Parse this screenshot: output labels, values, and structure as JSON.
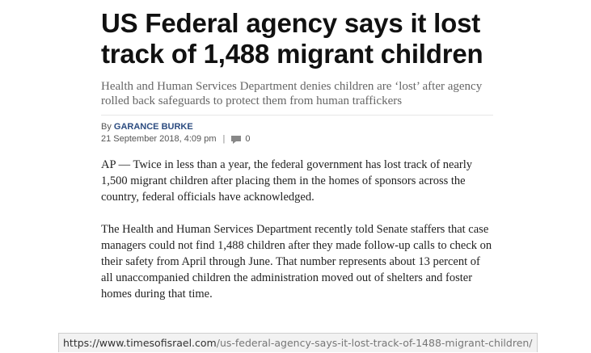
{
  "article": {
    "headline": "US Federal agency says it lost track of 1,488 migrant children",
    "subheadline": "Health and Human Services Department denies children are ‘lost’ after agency rolled back safeguards to protect them from human traffickers",
    "byline_prefix": "By",
    "author": "GARANCE BURKE",
    "timestamp": "21 September 2018, 4:09 pm",
    "separator": "|",
    "comment_count": "0",
    "paragraphs": [
      "AP — Twice in less than a year, the federal government has lost track of nearly 1,500 migrant children after placing them in the homes of sponsors across the country, federal officials have acknowledged.",
      "The Health and Human Services Department recently told Senate staffers that case managers could not find 1,488 children after they made follow-up calls to check on their safety from April through June. That number represents about 13 percent of all unaccompanied children the administration moved out of shelters and foster homes during that time."
    ]
  },
  "status_bar": {
    "url_domain": "https://www.timesofisrael.com",
    "url_path": "/us-federal-agency-says-it-lost-track-of-1488-migrant-children/"
  },
  "icons": {
    "comment": "speech-bubble-icon"
  },
  "colors": {
    "author_link": "#2c4c80",
    "headline": "#111111",
    "subheadline": "#666666"
  }
}
